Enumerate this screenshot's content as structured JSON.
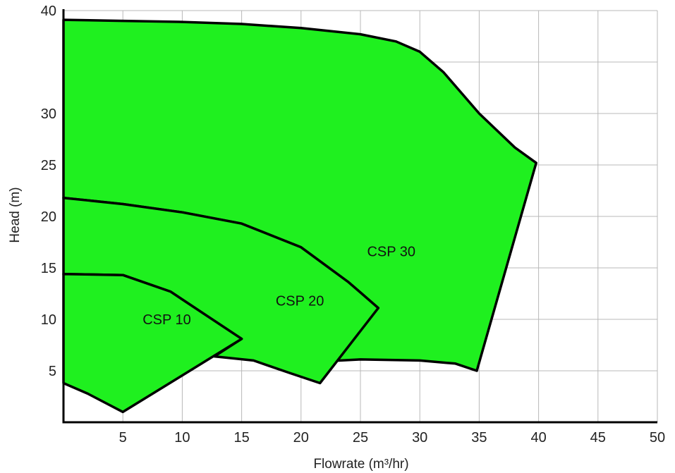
{
  "chart_data": {
    "type": "area",
    "title": "",
    "xlabel": "Flowrate (m³/hr)",
    "ylabel": "Head (m)",
    "xlim": [
      0,
      50
    ],
    "ylim": [
      0,
      40
    ],
    "x_ticks": [
      5,
      10,
      15,
      20,
      25,
      30,
      35,
      40,
      45,
      50
    ],
    "x_tick_labels": [
      "5",
      "10",
      "15",
      "20",
      "25",
      "30",
      "35",
      "40",
      "45",
      "50"
    ],
    "y_ticks": [
      5,
      10,
      15,
      20,
      25,
      30,
      40
    ],
    "y_tick_labels": [
      "5",
      "10",
      "15",
      "20",
      "25",
      "30",
      "40"
    ],
    "grid": true,
    "legend": "none",
    "fill_color": "#1ff01f",
    "outline_color": "#000000",
    "series": [
      {
        "name": "CSP 30",
        "outline": [
          [
            0,
            39.1
          ],
          [
            5,
            39.0
          ],
          [
            10,
            38.9
          ],
          [
            15,
            38.7
          ],
          [
            20,
            38.3
          ],
          [
            25,
            37.7
          ],
          [
            28,
            37.0
          ],
          [
            30,
            36.0
          ],
          [
            32,
            34.0
          ],
          [
            35,
            30.0
          ],
          [
            38,
            26.7
          ],
          [
            39.8,
            25.2
          ],
          [
            34.8,
            5.0
          ],
          [
            33,
            5.7
          ],
          [
            30,
            6.0
          ],
          [
            25,
            6.1
          ],
          [
            21.6,
            5.9
          ],
          [
            26.5,
            11.1
          ],
          [
            24,
            13.6
          ],
          [
            20,
            17.0
          ],
          [
            15,
            19.3
          ],
          [
            10,
            20.4
          ],
          [
            5,
            21.2
          ],
          [
            0,
            21.8
          ]
        ],
        "label_at": [
          27.6,
          16.6
        ]
      },
      {
        "name": "CSP 20",
        "outline": [
          [
            0,
            21.8
          ],
          [
            5,
            21.2
          ],
          [
            10,
            20.4
          ],
          [
            15,
            19.3
          ],
          [
            20,
            17.0
          ],
          [
            24,
            13.6
          ],
          [
            26.5,
            11.1
          ],
          [
            21.6,
            3.8
          ],
          [
            19,
            4.8
          ],
          [
            16,
            6.0
          ],
          [
            12.7,
            6.4
          ],
          [
            15,
            8.1
          ],
          [
            12,
            10.4
          ],
          [
            9,
            12.7
          ],
          [
            5,
            14.3
          ],
          [
            0,
            14.4
          ]
        ],
        "label_at": [
          19.9,
          11.8
        ]
      },
      {
        "name": "CSP 10",
        "outline": [
          [
            0,
            14.4
          ],
          [
            5,
            14.3
          ],
          [
            9,
            12.7
          ],
          [
            12,
            10.4
          ],
          [
            15,
            8.1
          ],
          [
            5,
            1.0
          ],
          [
            2,
            2.8
          ],
          [
            0,
            3.8
          ]
        ],
        "label_at": [
          8.7,
          10.0
        ]
      }
    ]
  }
}
